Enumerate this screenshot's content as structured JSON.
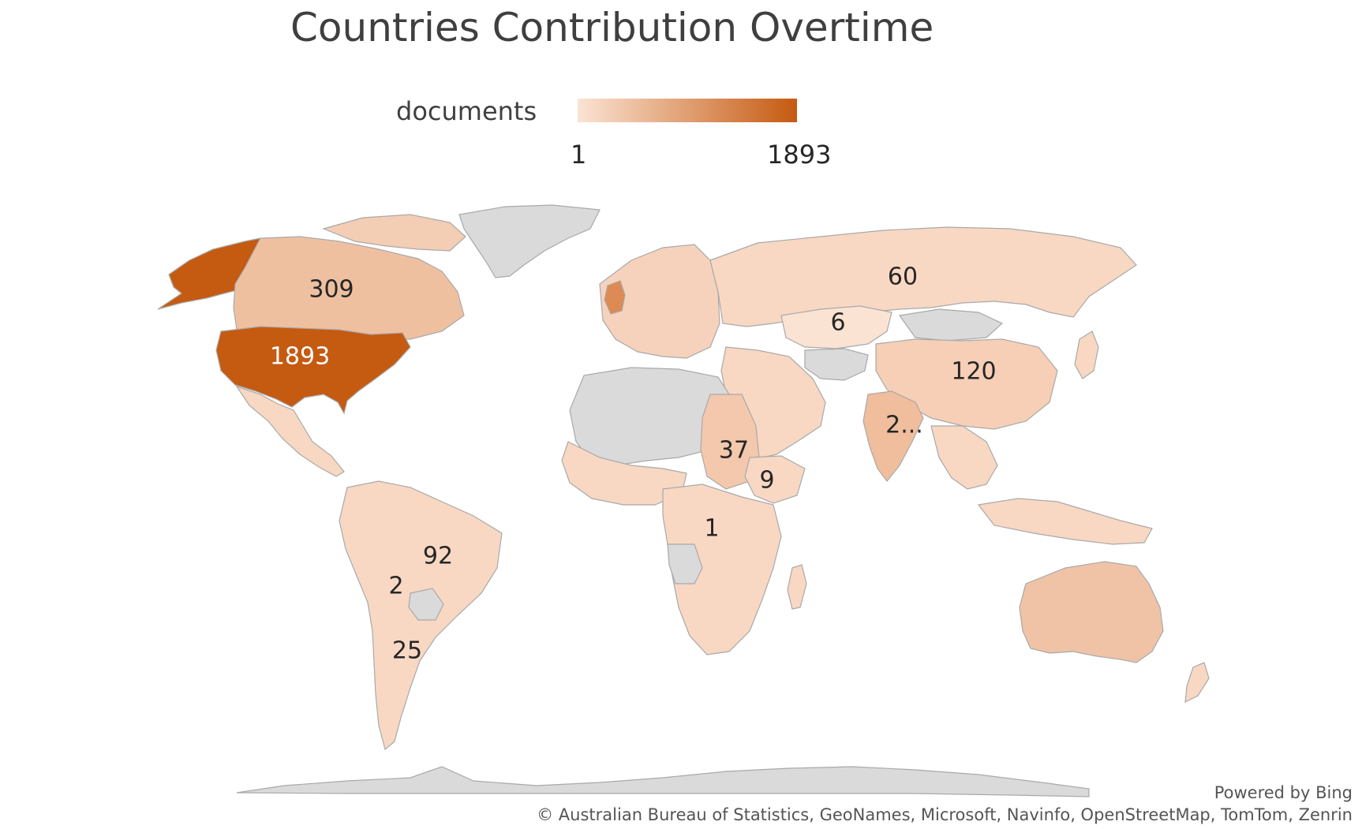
{
  "title": "Countries Contribution Overtime",
  "legend": {
    "title": "documents",
    "min_label": "1",
    "max_label": "1893",
    "min_value": 1,
    "max_value": 1893,
    "color_low": "#fbe3d3",
    "color_high": "#c55a11"
  },
  "colors": {
    "no_data": "#dadada",
    "low": "#f8d8c3",
    "mid": "#efc0a0",
    "high": "#c55a11"
  },
  "regions": [
    {
      "id": "usa",
      "label": "1893",
      "value": 1893
    },
    {
      "id": "canada",
      "label": "309",
      "value": 309
    },
    {
      "id": "russia",
      "label": "60",
      "value": 60
    },
    {
      "id": "kazakhstan",
      "label": "6",
      "value": 6
    },
    {
      "id": "china",
      "label": "120",
      "value": 120
    },
    {
      "id": "india",
      "label": "2...",
      "value": null
    },
    {
      "id": "sudan",
      "label": "37",
      "value": 37
    },
    {
      "id": "ethiopia",
      "label": "9",
      "value": 9
    },
    {
      "id": "drc",
      "label": "1",
      "value": 1
    },
    {
      "id": "brazil",
      "label": "92",
      "value": 92
    },
    {
      "id": "bolivia",
      "label": "2",
      "value": 2
    },
    {
      "id": "argentina",
      "label": "25",
      "value": 25
    }
  ],
  "attribution": {
    "powered": "Powered by Bing",
    "credits": "© Australian Bureau of Statistics, GeoNames, Microsoft, Navinfo, OpenStreetMap, TomTom, Zenrin"
  }
}
